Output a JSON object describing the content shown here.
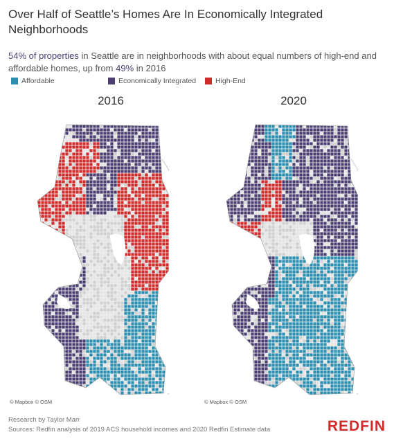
{
  "title": "Over Half of Seattle’s Homes Are In Economically Integrated Neighborhoods",
  "subtitle": {
    "pct_2020": "54% of properties",
    "text_a": " in Seattle are in neighborhoods with about equal numbers of high-end and affordable homes, up from ",
    "pct_2016": "49%",
    "text_b": " in 2016"
  },
  "legend": [
    {
      "label": "Affordable",
      "color": "#2a8fb0"
    },
    {
      "label": "Economically Integrated",
      "color": "#4b3f72"
    },
    {
      "label": "High-End",
      "color": "#d22b2b"
    }
  ],
  "maps": [
    {
      "year": "2016",
      "credit": "© Mapbox © OSM"
    },
    {
      "year": "2020",
      "credit": "© Mapbox © OSM"
    }
  ],
  "footer": {
    "author": "Research by Taylor Marr",
    "sources": "Sources: Redfin analysis of 2019 ACS household incomes and 2020 Redfin Estimate data"
  },
  "brand": "REDFIN"
}
